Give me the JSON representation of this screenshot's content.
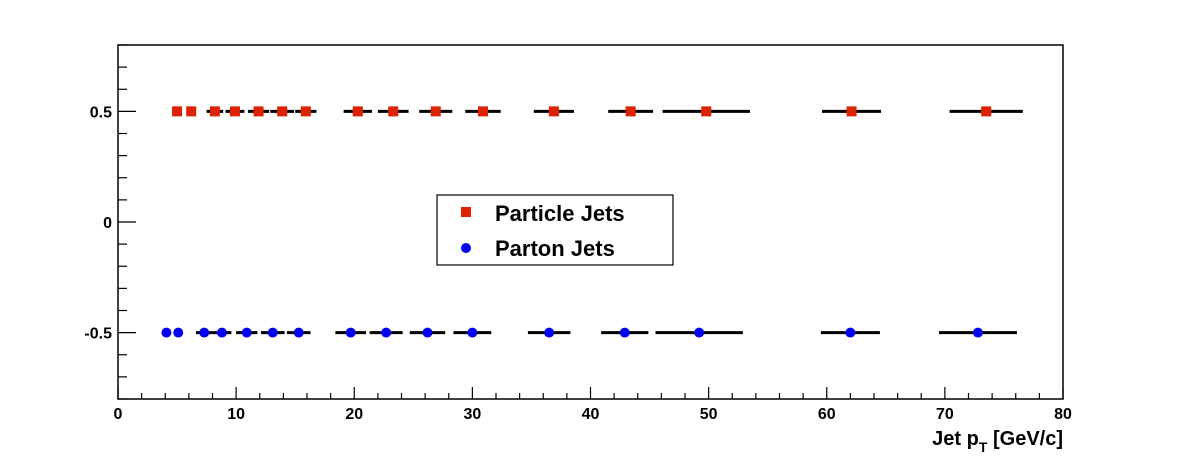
{
  "chart_data": {
    "type": "scatter",
    "title": "",
    "xlabel": "Jet p",
    "xlabel_sub": "T",
    "xlabel_unit": " [GeV/c]",
    "ylabel": "",
    "xlim": [
      0,
      80
    ],
    "ylim": [
      -0.8,
      0.8
    ],
    "x_ticks": [
      0,
      10,
      20,
      30,
      40,
      50,
      60,
      70,
      80
    ],
    "x_tick_labels": [
      "0",
      "10",
      "20",
      "30",
      "40",
      "50",
      "60",
      "70",
      "80"
    ],
    "y_ticks": [
      -0.5,
      0,
      0.5
    ],
    "y_tick_labels": [
      "-0.5",
      "0",
      "0.5"
    ],
    "grid": false,
    "legend_placement": "center",
    "series": [
      {
        "name": "Particle Jets",
        "marker": "square",
        "color": "#dd2200",
        "points": [
          {
            "x": 5.0,
            "y": 0.5,
            "xerr": 0.0
          },
          {
            "x": 6.2,
            "y": 0.5,
            "xerr": 0.0
          },
          {
            "x": 8.2,
            "y": 0.5,
            "xerr": 0.7
          },
          {
            "x": 9.9,
            "y": 0.5,
            "xerr": 0.8
          },
          {
            "x": 11.9,
            "y": 0.5,
            "xerr": 0.9
          },
          {
            "x": 13.9,
            "y": 0.5,
            "xerr": 1.0
          },
          {
            "x": 15.9,
            "y": 0.5,
            "xerr": 0.9
          },
          {
            "x": 20.3,
            "y": 0.5,
            "xerr": 1.2
          },
          {
            "x": 23.3,
            "y": 0.5,
            "xerr": 1.3
          },
          {
            "x": 26.9,
            "y": 0.5,
            "xerr": 1.4
          },
          {
            "x": 30.9,
            "y": 0.5,
            "xerr": 1.5
          },
          {
            "x": 36.9,
            "y": 0.5,
            "xerr": 1.7
          },
          {
            "x": 43.4,
            "y": 0.5,
            "xerr": 1.9
          },
          {
            "x": 49.8,
            "y": 0.5,
            "xerr": 3.7
          },
          {
            "x": 62.1,
            "y": 0.5,
            "xerr": 2.5
          },
          {
            "x": 73.5,
            "y": 0.5,
            "xerr": 3.1
          }
        ]
      },
      {
        "name": "Parton Jets",
        "marker": "circle",
        "color": "#0000ee",
        "points": [
          {
            "x": 4.1,
            "y": -0.5,
            "xerr": 0.0
          },
          {
            "x": 5.1,
            "y": -0.5,
            "xerr": 0.0
          },
          {
            "x": 7.3,
            "y": -0.5,
            "xerr": 0.7
          },
          {
            "x": 8.8,
            "y": -0.5,
            "xerr": 0.8
          },
          {
            "x": 10.9,
            "y": -0.5,
            "xerr": 0.9
          },
          {
            "x": 13.1,
            "y": -0.5,
            "xerr": 1.0
          },
          {
            "x": 15.3,
            "y": -0.5,
            "xerr": 1.0
          },
          {
            "x": 19.7,
            "y": -0.5,
            "xerr": 1.3
          },
          {
            "x": 22.7,
            "y": -0.5,
            "xerr": 1.4
          },
          {
            "x": 26.2,
            "y": -0.5,
            "xerr": 1.5
          },
          {
            "x": 30.0,
            "y": -0.5,
            "xerr": 1.6
          },
          {
            "x": 36.5,
            "y": -0.5,
            "xerr": 1.8
          },
          {
            "x": 42.9,
            "y": -0.5,
            "xerr": 2.0
          },
          {
            "x": 49.2,
            "y": -0.5,
            "xerr": 3.7
          },
          {
            "x": 62.0,
            "y": -0.5,
            "xerr": 2.5
          },
          {
            "x": 72.8,
            "y": -0.5,
            "xerr": 3.3
          }
        ]
      }
    ]
  }
}
